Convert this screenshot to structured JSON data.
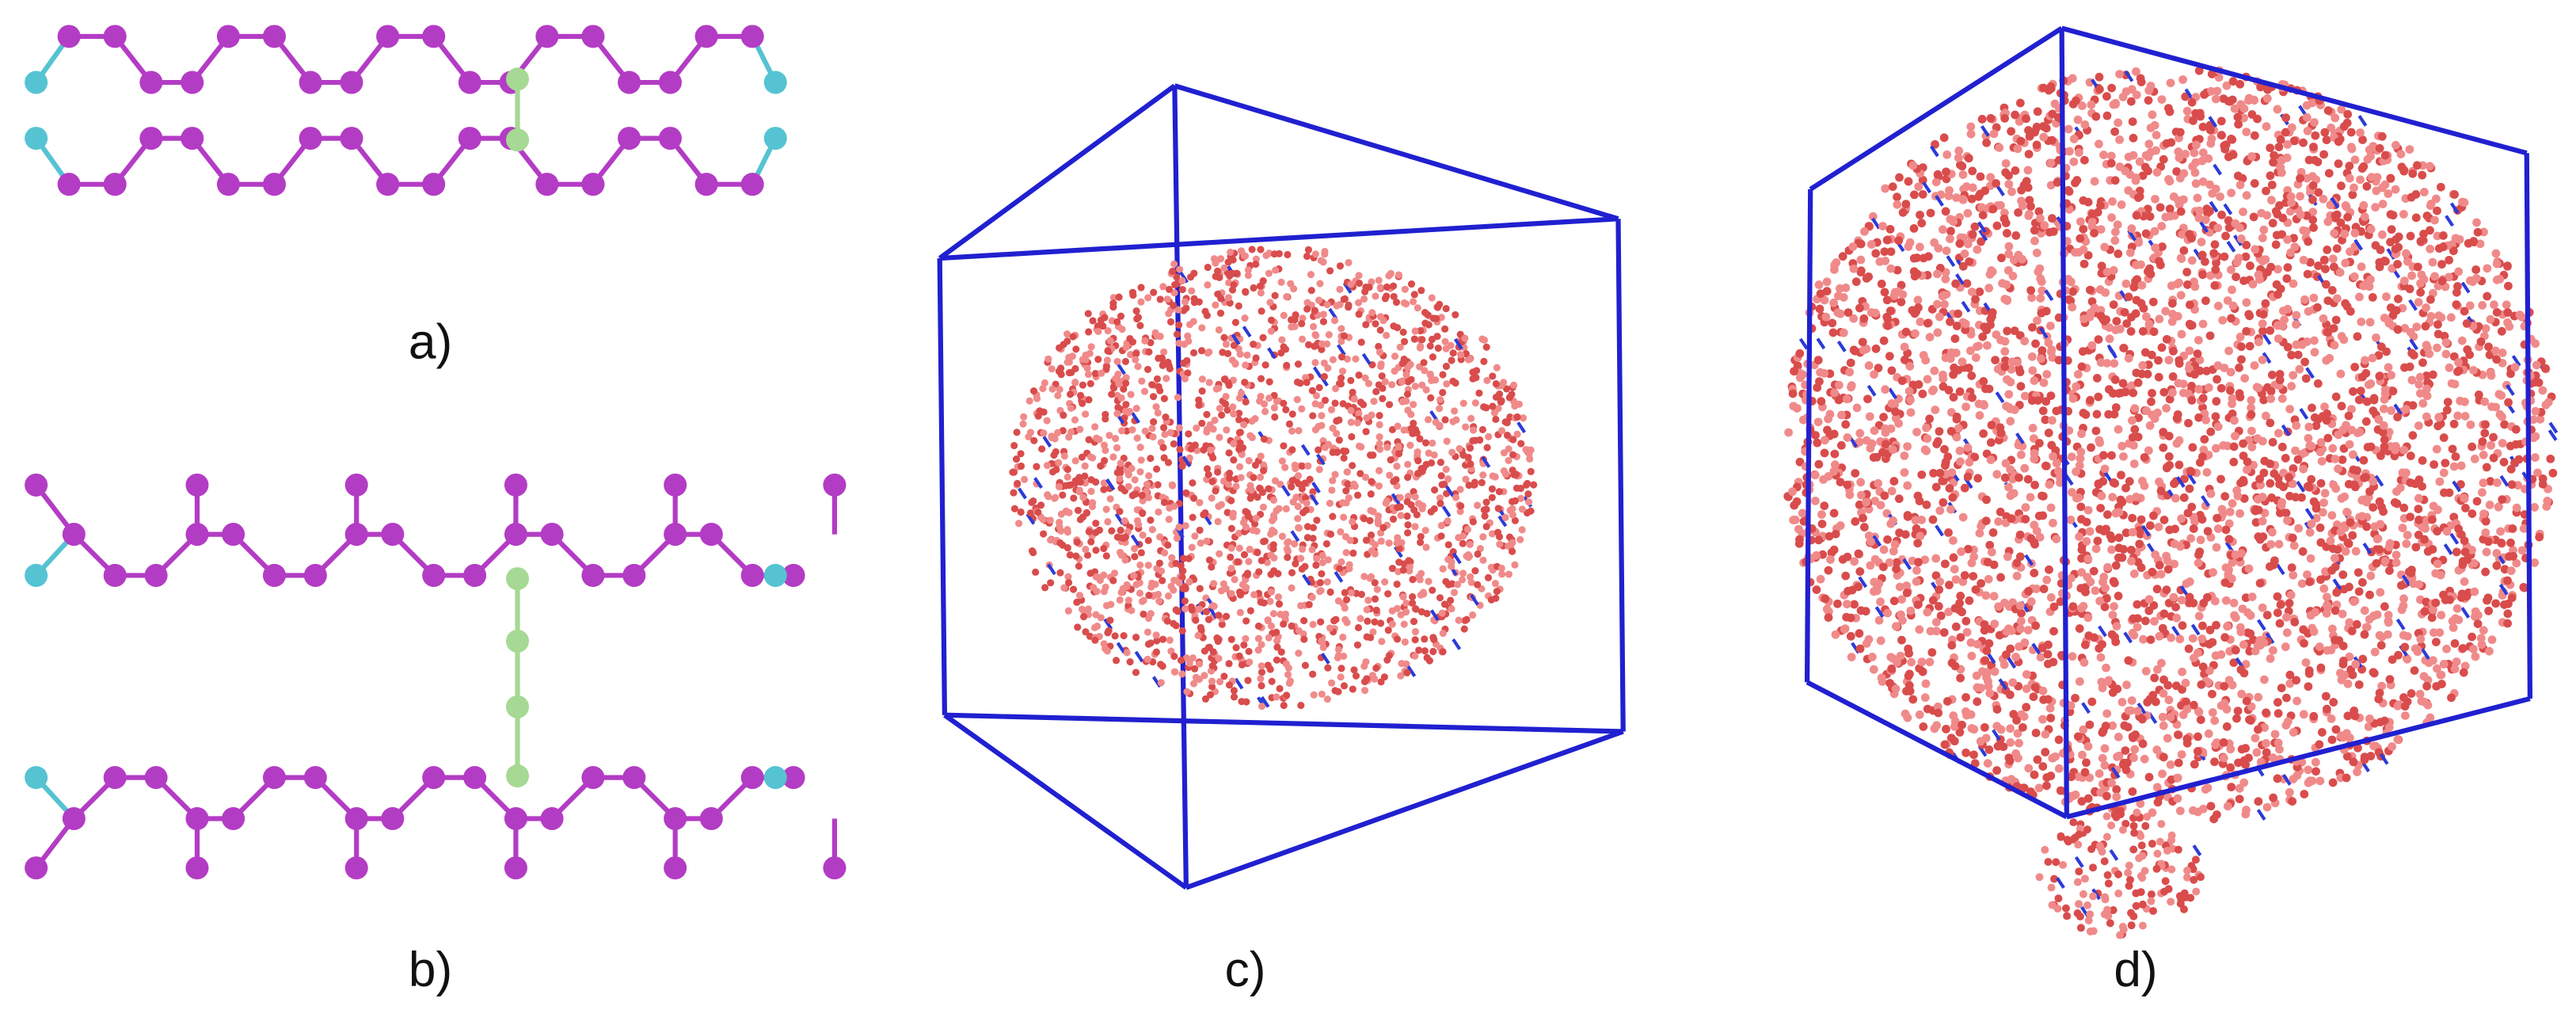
{
  "labels": [
    "a)",
    "b)",
    "c)",
    "d)"
  ]
}
